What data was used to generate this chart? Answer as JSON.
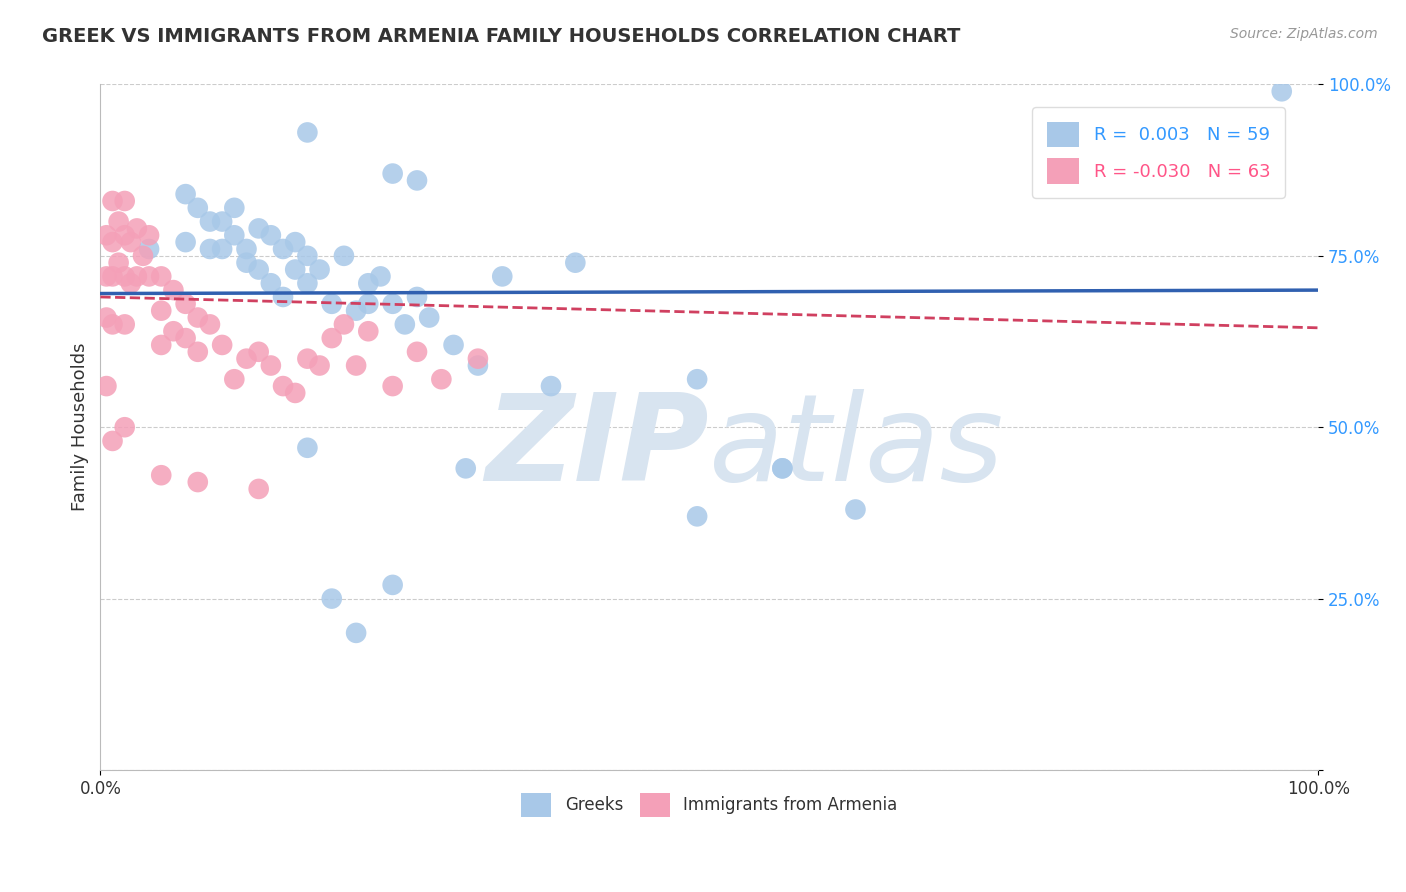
{
  "title": "GREEK VS IMMIGRANTS FROM ARMENIA FAMILY HOUSEHOLDS CORRELATION CHART",
  "source": "Source: ZipAtlas.com",
  "ylabel": "Family Households",
  "xlim": [
    0,
    1
  ],
  "ylim": [
    0,
    1
  ],
  "yticks": [
    0.0,
    0.25,
    0.5,
    0.75,
    1.0
  ],
  "ytick_labels": [
    "",
    "25.0%",
    "50.0%",
    "75.0%",
    "100.0%"
  ],
  "legend_blue_r": "0.003",
  "legend_blue_n": "59",
  "legend_pink_r": "-0.030",
  "legend_pink_n": "63",
  "legend_blue_label": "Greeks",
  "legend_pink_label": "Immigrants from Armenia",
  "blue_color": "#a8c8e8",
  "pink_color": "#f4a0b8",
  "blue_line_color": "#3060b0",
  "pink_line_color": "#d04060",
  "watermark_color": "#d8e4f0",
  "background_color": "#ffffff",
  "grid_color": "#cccccc",
  "blue_line_y0": 0.695,
  "blue_line_y1": 0.7,
  "pink_line_y0": 0.69,
  "pink_line_y1": 0.645,
  "blue_points_x": [
    0.17,
    0.24,
    0.26,
    0.04,
    0.07,
    0.07,
    0.08,
    0.09,
    0.09,
    0.1,
    0.1,
    0.11,
    0.11,
    0.12,
    0.12,
    0.13,
    0.13,
    0.14,
    0.14,
    0.15,
    0.15,
    0.16,
    0.16,
    0.17,
    0.17,
    0.18,
    0.19,
    0.2,
    0.21,
    0.22,
    0.22,
    0.23,
    0.24,
    0.25,
    0.26,
    0.27,
    0.29,
    0.31,
    0.33,
    0.37,
    0.39,
    0.49,
    0.56,
    0.62,
    0.97
  ],
  "blue_points_y": [
    0.93,
    0.87,
    0.86,
    0.76,
    0.84,
    0.77,
    0.82,
    0.76,
    0.8,
    0.8,
    0.76,
    0.82,
    0.78,
    0.76,
    0.74,
    0.79,
    0.73,
    0.78,
    0.71,
    0.76,
    0.69,
    0.73,
    0.77,
    0.71,
    0.75,
    0.73,
    0.68,
    0.75,
    0.67,
    0.68,
    0.71,
    0.72,
    0.68,
    0.65,
    0.69,
    0.66,
    0.62,
    0.59,
    0.72,
    0.56,
    0.74,
    0.57,
    0.44,
    0.38,
    0.99
  ],
  "blue_outlier_x": [
    0.17,
    0.19,
    0.21,
    0.24,
    0.3,
    0.49,
    0.56
  ],
  "blue_outlier_y": [
    0.47,
    0.25,
    0.2,
    0.27,
    0.44,
    0.37,
    0.44
  ],
  "pink_points_x": [
    0.005,
    0.005,
    0.005,
    0.01,
    0.01,
    0.01,
    0.01,
    0.015,
    0.015,
    0.02,
    0.02,
    0.02,
    0.02,
    0.025,
    0.025,
    0.03,
    0.03,
    0.035,
    0.04,
    0.04,
    0.05,
    0.05,
    0.05,
    0.06,
    0.06,
    0.07,
    0.07,
    0.08,
    0.08,
    0.09,
    0.1,
    0.11,
    0.12,
    0.13,
    0.14,
    0.15,
    0.16,
    0.17,
    0.18,
    0.19,
    0.2,
    0.21,
    0.22,
    0.24,
    0.26,
    0.28,
    0.31
  ],
  "pink_points_y": [
    0.78,
    0.72,
    0.66,
    0.83,
    0.77,
    0.72,
    0.65,
    0.8,
    0.74,
    0.83,
    0.78,
    0.72,
    0.65,
    0.77,
    0.71,
    0.79,
    0.72,
    0.75,
    0.78,
    0.72,
    0.72,
    0.67,
    0.62,
    0.7,
    0.64,
    0.68,
    0.63,
    0.66,
    0.61,
    0.65,
    0.62,
    0.57,
    0.6,
    0.61,
    0.59,
    0.56,
    0.55,
    0.6,
    0.59,
    0.63,
    0.65,
    0.59,
    0.64,
    0.56,
    0.61,
    0.57,
    0.6
  ],
  "pink_outlier_x": [
    0.005,
    0.01,
    0.02,
    0.05,
    0.08,
    0.13
  ],
  "pink_outlier_y": [
    0.56,
    0.48,
    0.5,
    0.43,
    0.42,
    0.41
  ]
}
